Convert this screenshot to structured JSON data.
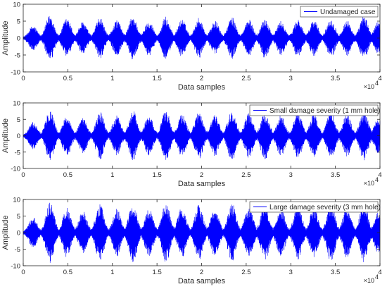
{
  "chart_data": [
    {
      "type": "line",
      "xlabel": "Data samples",
      "ylabel": "Amplitude",
      "xlim": [
        0,
        40000
      ],
      "ylim": [
        -10,
        10
      ],
      "x_ticks": [
        0,
        5000,
        10000,
        15000,
        20000,
        25000,
        30000,
        35000,
        40000
      ],
      "x_tick_labels": [
        "0",
        "0.5",
        "1",
        "1.5",
        "2",
        "2.5",
        "3",
        "3.5",
        "4"
      ],
      "x_multiplier": "×10",
      "x_multiplier_exp": "4",
      "y_ticks": [
        -10,
        -5,
        0,
        5,
        10
      ],
      "y_tick_labels": [
        "-10",
        "-5",
        "0",
        "5",
        "10"
      ],
      "legend_position": "top-right",
      "grid": false,
      "series": [
        {
          "name": "Undamaged case",
          "color": "#0000ff",
          "signal": "burst",
          "burst_centers": [
            1100,
            3000,
            4900,
            6700,
            8600,
            10500,
            12300,
            14100,
            16000,
            17800,
            19700,
            21500,
            23400,
            25300,
            27100,
            28900,
            30800,
            32600,
            34500,
            36300,
            38200,
            39800
          ],
          "burst_peaks": [
            3.5,
            6.8,
            5.7,
            4.6,
            5.9,
            5.2,
            6.3,
            5.0,
            6.1,
            5.4,
            5.8,
            4.9,
            6.0,
            5.3,
            5.7,
            4.8,
            5.5,
            5.2,
            5.6,
            5.1,
            6.3,
            4.5
          ]
        }
      ]
    },
    {
      "type": "line",
      "xlabel": "Data samples",
      "ylabel": "Amplitude",
      "xlim": [
        0,
        40000
      ],
      "ylim": [
        -10,
        10
      ],
      "x_ticks": [
        0,
        5000,
        10000,
        15000,
        20000,
        25000,
        30000,
        35000,
        40000
      ],
      "x_tick_labels": [
        "0",
        "0.5",
        "1",
        "1.5",
        "2",
        "2.5",
        "3",
        "3.5",
        "4"
      ],
      "x_multiplier": "×10",
      "x_multiplier_exp": "4",
      "y_ticks": [
        -10,
        -5,
        0,
        5,
        10
      ],
      "y_tick_labels": [
        "-10",
        "-5",
        "0",
        "5",
        "10"
      ],
      "legend_position": "top-right",
      "grid": false,
      "series": [
        {
          "name": "Small damage severity (1 mm hole)",
          "color": "#0000ff",
          "signal": "burst",
          "burst_centers": [
            1100,
            3000,
            4900,
            6700,
            8600,
            10500,
            12300,
            14100,
            16000,
            17800,
            19700,
            21500,
            23400,
            25300,
            27100,
            28900,
            30800,
            32600,
            34500,
            36300,
            38200,
            39800
          ],
          "burst_peaks": [
            4.0,
            7.8,
            6.2,
            5.1,
            7.2,
            5.9,
            7.5,
            6.0,
            7.7,
            6.4,
            7.0,
            6.1,
            7.6,
            6.6,
            7.1,
            6.0,
            6.9,
            6.3,
            7.2,
            6.4,
            7.5,
            5.2
          ]
        }
      ]
    },
    {
      "type": "line",
      "xlabel": "Data samples",
      "ylabel": "Amplitude",
      "xlim": [
        0,
        40000
      ],
      "ylim": [
        -10,
        10
      ],
      "x_ticks": [
        0,
        5000,
        10000,
        15000,
        20000,
        25000,
        30000,
        35000,
        40000
      ],
      "x_tick_labels": [
        "0",
        "0.5",
        "1",
        "1.5",
        "2",
        "2.5",
        "3",
        "3.5",
        "4"
      ],
      "x_multiplier": "×10",
      "x_multiplier_exp": "4",
      "y_ticks": [
        -10,
        -5,
        0,
        5,
        10
      ],
      "y_tick_labels": [
        "-10",
        "-5",
        "0",
        "5",
        "10"
      ],
      "legend_position": "top-right",
      "grid": false,
      "series": [
        {
          "name": "Large damage severity (3 mm hole)",
          "color": "#0000ff",
          "signal": "burst",
          "burst_centers": [
            1100,
            3000,
            4900,
            6700,
            8600,
            10500,
            12300,
            14100,
            16000,
            17800,
            19700,
            21500,
            23400,
            25300,
            27100,
            28900,
            30800,
            32600,
            34500,
            36300,
            38200,
            39800
          ],
          "burst_peaks": [
            4.5,
            8.9,
            7.4,
            6.3,
            8.6,
            7.0,
            8.8,
            7.1,
            8.9,
            7.6,
            8.2,
            7.3,
            8.7,
            7.8,
            8.4,
            7.2,
            8.1,
            7.5,
            8.5,
            7.6,
            8.8,
            6.0
          ]
        }
      ]
    }
  ]
}
